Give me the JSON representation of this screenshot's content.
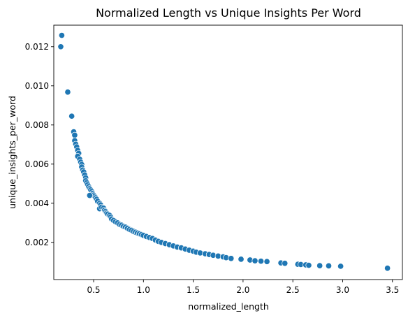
{
  "chart_data": {
    "type": "scatter",
    "title": "Normalized Length vs Unique Insights Per Word",
    "xlabel": "normalized_length",
    "ylabel": "unique_insights_per_word",
    "xlim": [
      0.1,
      3.6
    ],
    "ylim": [
      0.0001,
      0.0131
    ],
    "xticks": [
      0.5,
      1.0,
      1.5,
      2.0,
      2.5,
      3.0,
      3.5
    ],
    "xtick_labels": [
      "0.5",
      "1.0",
      "1.5",
      "2.0",
      "2.5",
      "3.0",
      "3.5"
    ],
    "yticks": [
      0.002,
      0.004,
      0.006,
      0.008,
      0.01,
      0.012
    ],
    "ytick_labels": [
      "0.002",
      "0.004",
      "0.006",
      "0.008",
      "0.010",
      "0.012"
    ],
    "grid": false,
    "color": "#1f77b4",
    "series": [
      {
        "points": [
          [
            0.18,
            0.01258
          ],
          [
            0.17,
            0.012
          ],
          [
            0.24,
            0.00968
          ],
          [
            0.28,
            0.00845
          ],
          [
            0.3,
            0.00765
          ],
          [
            0.31,
            0.00748
          ],
          [
            0.31,
            0.0072
          ],
          [
            0.32,
            0.00702
          ],
          [
            0.33,
            0.00688
          ],
          [
            0.34,
            0.0067
          ],
          [
            0.35,
            0.00655
          ],
          [
            0.34,
            0.0064
          ],
          [
            0.36,
            0.00625
          ],
          [
            0.37,
            0.0061
          ],
          [
            0.38,
            0.00598
          ],
          [
            0.38,
            0.00585
          ],
          [
            0.39,
            0.0057
          ],
          [
            0.4,
            0.0056
          ],
          [
            0.41,
            0.00545
          ],
          [
            0.42,
            0.0053
          ],
          [
            0.42,
            0.00515
          ],
          [
            0.43,
            0.00505
          ],
          [
            0.44,
            0.00495
          ],
          [
            0.45,
            0.00485
          ],
          [
            0.46,
            0.00475
          ],
          [
            0.47,
            0.00468
          ],
          [
            0.48,
            0.0046
          ],
          [
            0.49,
            0.0045
          ],
          [
            0.5,
            0.00442
          ],
          [
            0.51,
            0.00435
          ],
          [
            0.52,
            0.00428
          ],
          [
            0.46,
            0.0044
          ],
          [
            0.53,
            0.0042
          ],
          [
            0.54,
            0.0041
          ],
          [
            0.56,
            0.004
          ],
          [
            0.57,
            0.00392
          ],
          [
            0.56,
            0.00372
          ],
          [
            0.58,
            0.0038
          ],
          [
            0.6,
            0.00375
          ],
          [
            0.61,
            0.00365
          ],
          [
            0.62,
            0.00358
          ],
          [
            0.63,
            0.0035
          ],
          [
            0.64,
            0.00345
          ],
          [
            0.66,
            0.00338
          ],
          [
            0.67,
            0.0033
          ],
          [
            0.68,
            0.0032
          ],
          [
            0.7,
            0.00312
          ],
          [
            0.72,
            0.00305
          ],
          [
            0.74,
            0.003
          ],
          [
            0.76,
            0.00292
          ],
          [
            0.78,
            0.00288
          ],
          [
            0.8,
            0.00282
          ],
          [
            0.82,
            0.00278
          ],
          [
            0.84,
            0.00272
          ],
          [
            0.86,
            0.00266
          ],
          [
            0.88,
            0.00262
          ],
          [
            0.9,
            0.00256
          ],
          [
            0.92,
            0.00252
          ],
          [
            0.94,
            0.00248
          ],
          [
            0.96,
            0.00244
          ],
          [
            0.98,
            0.0024
          ],
          [
            1.0,
            0.00236
          ],
          [
            1.03,
            0.0023
          ],
          [
            1.06,
            0.00225
          ],
          [
            1.09,
            0.0022
          ],
          [
            1.12,
            0.00212
          ],
          [
            1.15,
            0.00205
          ],
          [
            1.18,
            0.002
          ],
          [
            1.22,
            0.00194
          ],
          [
            1.26,
            0.00188
          ],
          [
            1.3,
            0.00182
          ],
          [
            1.34,
            0.00176
          ],
          [
            1.38,
            0.00172
          ],
          [
            1.42,
            0.00166
          ],
          [
            1.46,
            0.0016
          ],
          [
            1.5,
            0.00155
          ],
          [
            1.53,
            0.0015
          ],
          [
            1.57,
            0.00146
          ],
          [
            1.62,
            0.00142
          ],
          [
            1.66,
            0.00138
          ],
          [
            1.7,
            0.00134
          ],
          [
            1.75,
            0.0013
          ],
          [
            1.8,
            0.00126
          ],
          [
            1.83,
            0.00122
          ],
          [
            1.88,
            0.00118
          ],
          [
            1.98,
            0.00114
          ],
          [
            2.07,
            0.0011
          ],
          [
            2.12,
            0.00106
          ],
          [
            2.18,
            0.00104
          ],
          [
            2.24,
            0.00102
          ],
          [
            2.38,
            0.00095
          ],
          [
            2.42,
            0.00093
          ],
          [
            2.55,
            0.00088
          ],
          [
            2.58,
            0.00087
          ],
          [
            2.63,
            0.00085
          ],
          [
            2.66,
            0.00083
          ],
          [
            2.77,
            0.00081
          ],
          [
            2.86,
            0.0008
          ],
          [
            2.98,
            0.00078
          ],
          [
            3.45,
            0.00068
          ]
        ]
      }
    ]
  }
}
